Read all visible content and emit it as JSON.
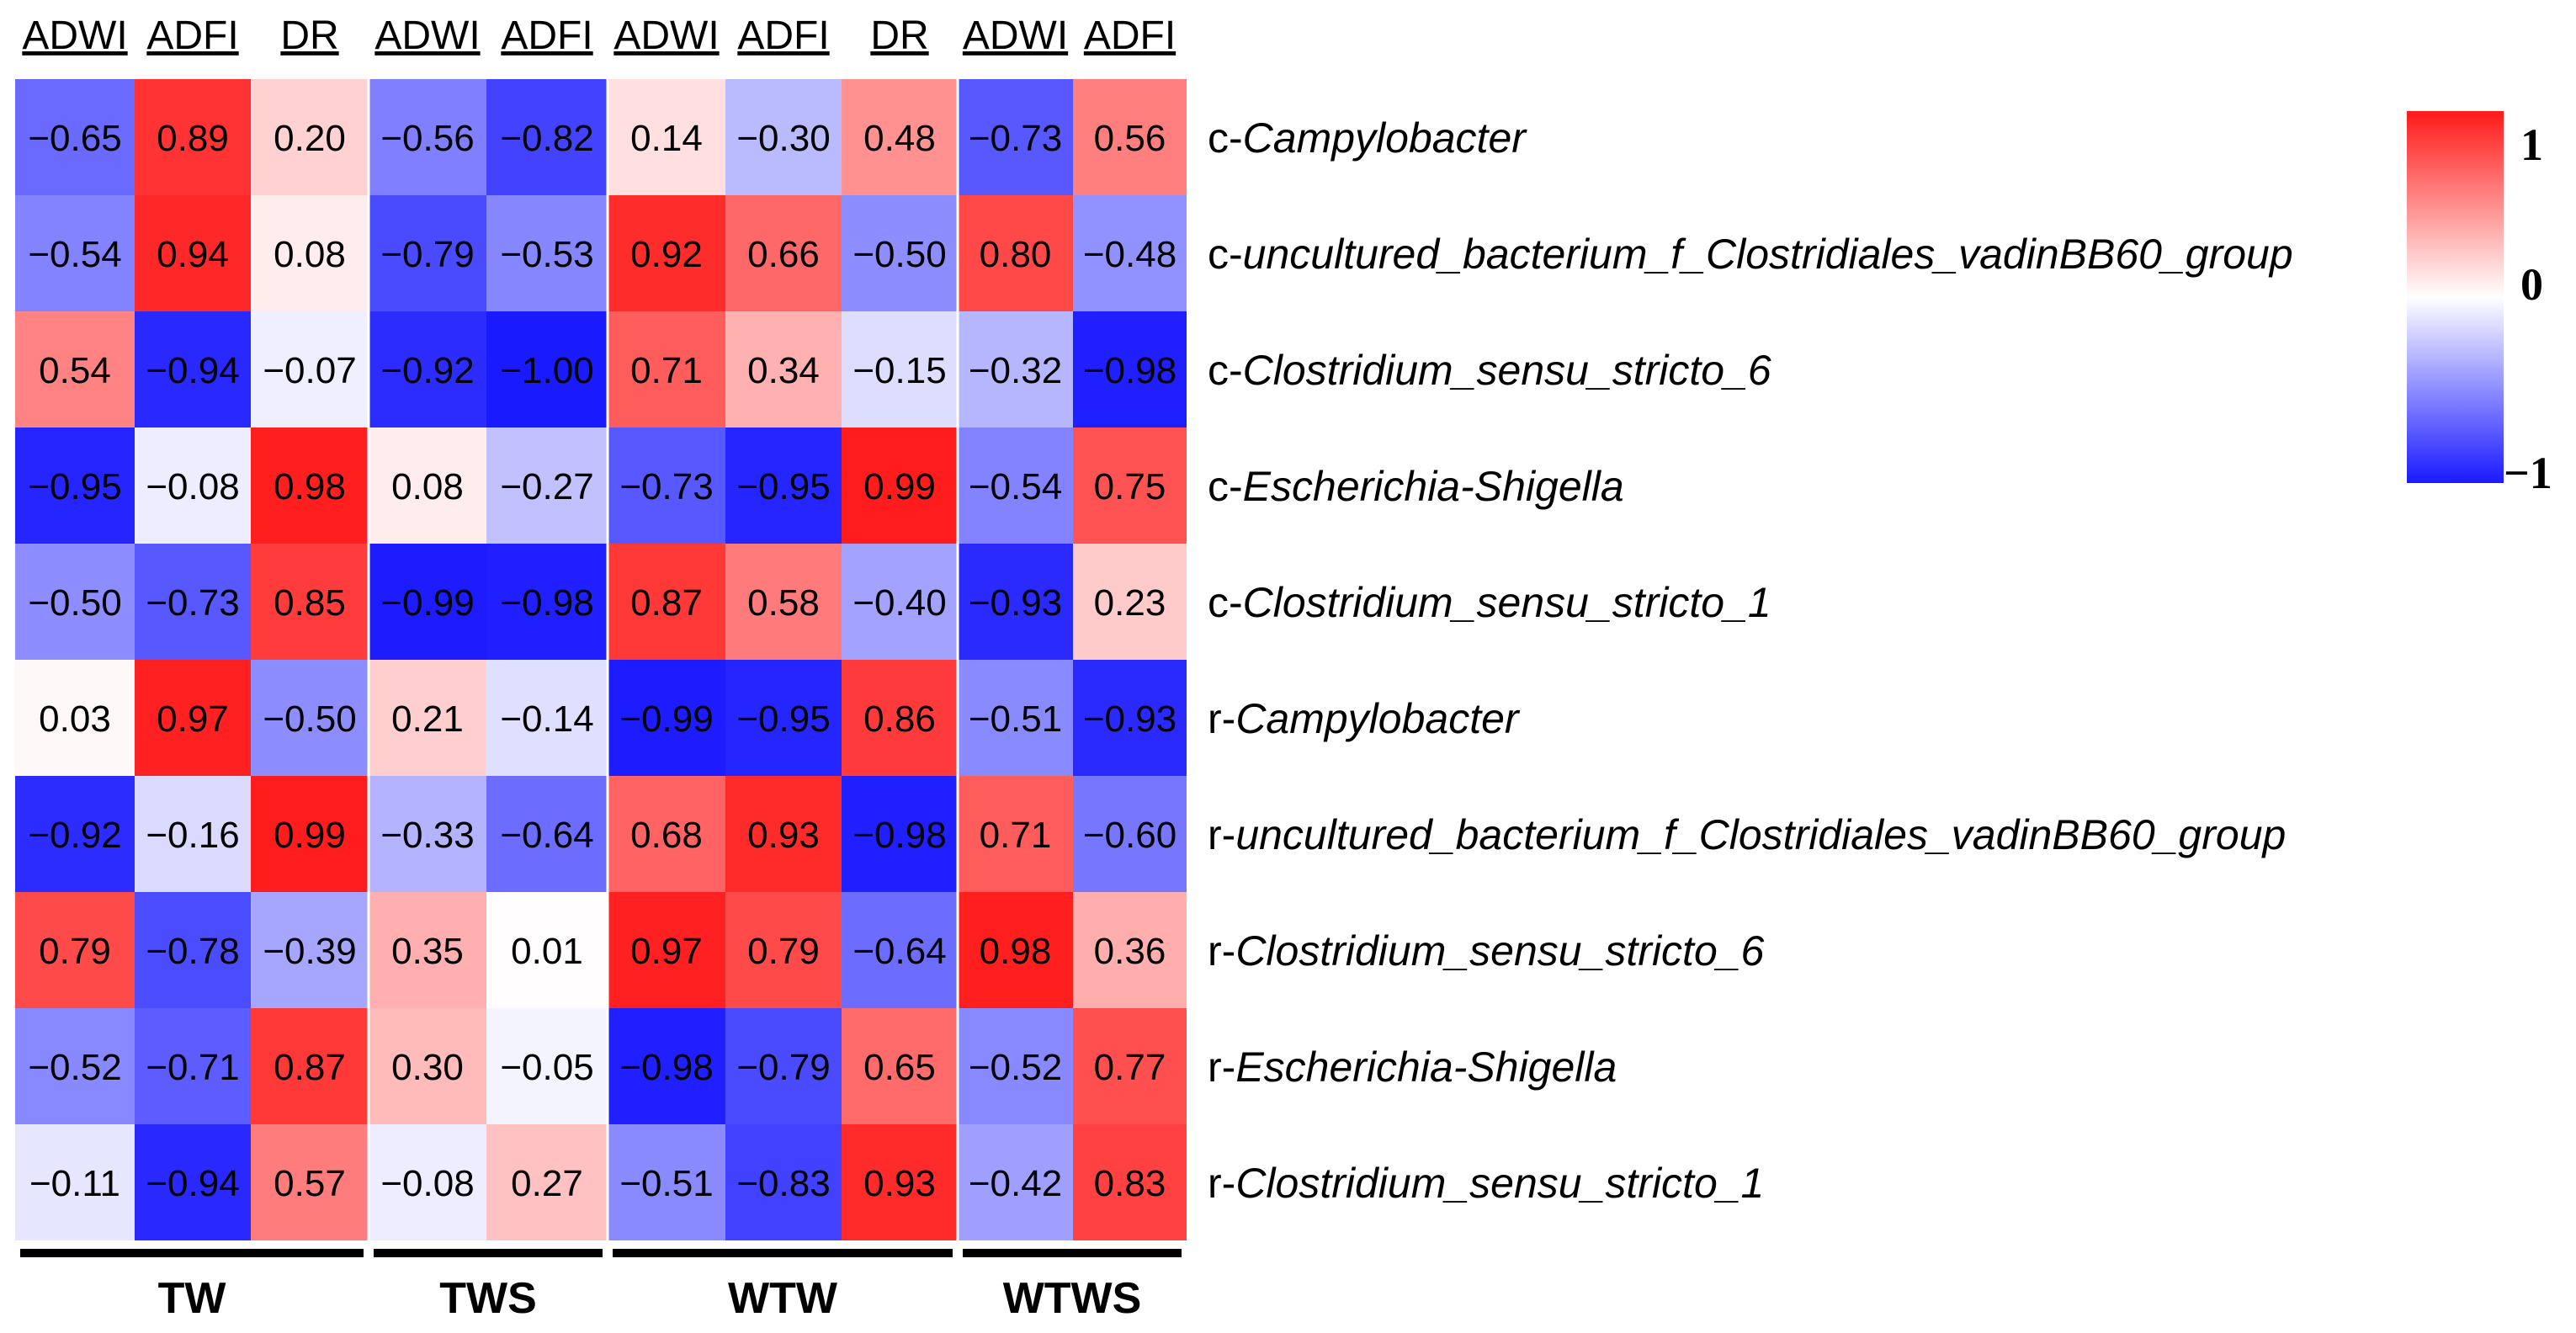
{
  "chart_data": {
    "type": "heatmap",
    "title": "",
    "columns": [
      "ADWI",
      "ADFI",
      "DR",
      "ADWI",
      "ADFI",
      "ADWI",
      "ADFI",
      "DR",
      "ADWI",
      "ADFI"
    ],
    "column_groups": [
      {
        "name": "TW",
        "size": 3
      },
      {
        "name": "TWS",
        "size": 2
      },
      {
        "name": "WTW",
        "size": 3
      },
      {
        "name": "WTWS",
        "size": 2
      }
    ],
    "rows": [
      {
        "prefix": "c-",
        "name": "Campylobacter"
      },
      {
        "prefix": "c-",
        "name": "uncultured_bacterium_f_Clostridiales_vadinBB60_group"
      },
      {
        "prefix": "c-",
        "name": "Clostridium_sensu_stricto_6"
      },
      {
        "prefix": "c-",
        "name": "Escherichia-Shigella"
      },
      {
        "prefix": "c-",
        "name": "Clostridium_sensu_stricto_1"
      },
      {
        "prefix": "r-",
        "name": "Campylobacter"
      },
      {
        "prefix": "r-",
        "name": "uncultured_bacterium_f_Clostridiales_vadinBB60_group"
      },
      {
        "prefix": "r-",
        "name": "Clostridium_sensu_stricto_6"
      },
      {
        "prefix": "r-",
        "name": "Escherichia-Shigella"
      },
      {
        "prefix": "r-",
        "name": "Clostridium_sensu_stricto_1"
      }
    ],
    "values": [
      [
        -0.65,
        0.89,
        0.2,
        -0.56,
        -0.82,
        0.14,
        -0.3,
        0.48,
        -0.73,
        0.56
      ],
      [
        -0.54,
        0.94,
        0.08,
        -0.79,
        -0.53,
        0.92,
        0.66,
        -0.5,
        0.8,
        -0.48
      ],
      [
        0.54,
        -0.94,
        -0.07,
        -0.92,
        -1.0,
        0.71,
        0.34,
        -0.15,
        -0.32,
        -0.98
      ],
      [
        -0.95,
        -0.08,
        0.98,
        0.08,
        -0.27,
        -0.73,
        -0.95,
        0.99,
        -0.54,
        0.75
      ],
      [
        -0.5,
        -0.73,
        0.85,
        -0.99,
        -0.98,
        0.87,
        0.58,
        -0.4,
        -0.93,
        0.23
      ],
      [
        0.03,
        0.97,
        -0.5,
        0.21,
        -0.14,
        -0.99,
        -0.95,
        0.86,
        -0.51,
        -0.93
      ],
      [
        -0.92,
        -0.16,
        0.99,
        -0.33,
        -0.64,
        0.68,
        0.93,
        -0.98,
        0.71,
        -0.6
      ],
      [
        0.79,
        -0.78,
        -0.39,
        0.35,
        0.01,
        0.97,
        0.79,
        -0.64,
        0.98,
        0.36
      ],
      [
        -0.52,
        -0.71,
        0.87,
        0.3,
        -0.05,
        -0.98,
        -0.79,
        0.65,
        -0.52,
        0.77
      ],
      [
        -0.11,
        -0.94,
        0.57,
        -0.08,
        0.27,
        -0.51,
        -0.83,
        0.93,
        -0.42,
        0.83
      ]
    ],
    "display_values": [
      [
        "−0.65",
        "0.89",
        "0.20",
        "−0.56",
        "−0.82",
        "0.14",
        "−0.30",
        "0.48",
        "−0.73",
        "0.56"
      ],
      [
        "−0.54",
        "0.94",
        "0.08",
        "−0.79",
        "−0.53",
        "0.92",
        "0.66",
        "−0.50",
        "0.80",
        "−0.48"
      ],
      [
        "0.54",
        "−0.94",
        "−0.07",
        "−0.92",
        "−1.00",
        "0.71",
        "0.34",
        "−0.15",
        "−0.32",
        "−0.98"
      ],
      [
        "−0.95",
        "−0.08",
        "0.98",
        "0.08",
        "−0.27",
        "−0.73",
        "−0.95",
        "0.99",
        "−0.54",
        "0.75"
      ],
      [
        "−0.50",
        "−0.73",
        "0.85",
        "−0.99",
        "−0.98",
        "0.87",
        "0.58",
        "−0.40",
        "−0.93",
        "0.23"
      ],
      [
        "0.03",
        "0.97",
        "−0.50",
        "0.21",
        "−0.14",
        "−0.99",
        "−0.95",
        "0.86",
        "−0.51",
        "−0.93"
      ],
      [
        "−0.92",
        "−0.16",
        "0.99",
        "−0.33",
        "−0.64",
        "0.68",
        "0.93",
        "−0.98",
        "0.71",
        "−0.60"
      ],
      [
        "0.79",
        "−0.78",
        "−0.39",
        "0.35",
        "0.01",
        "0.97",
        "0.79",
        "−0.64",
        "0.98",
        "0.36"
      ],
      [
        "−0.52",
        "−0.71",
        "0.87",
        "0.30",
        "−0.05",
        "−0.98",
        "−0.79",
        "0.65",
        "−0.52",
        "0.77"
      ],
      [
        "−0.11",
        "−0.94",
        "0.57",
        "−0.08",
        "0.27",
        "−0.51",
        "−0.83",
        "0.93",
        "−0.42",
        "0.83"
      ]
    ],
    "color_scale": {
      "min": -1,
      "mid": 0,
      "max": 1,
      "low_color": "#1a1aff",
      "mid_color": "#ffffff",
      "high_color": "#ff1a1a"
    },
    "legend": {
      "ticks": [
        "1",
        "0",
        "−1"
      ],
      "position": "top-right"
    }
  }
}
